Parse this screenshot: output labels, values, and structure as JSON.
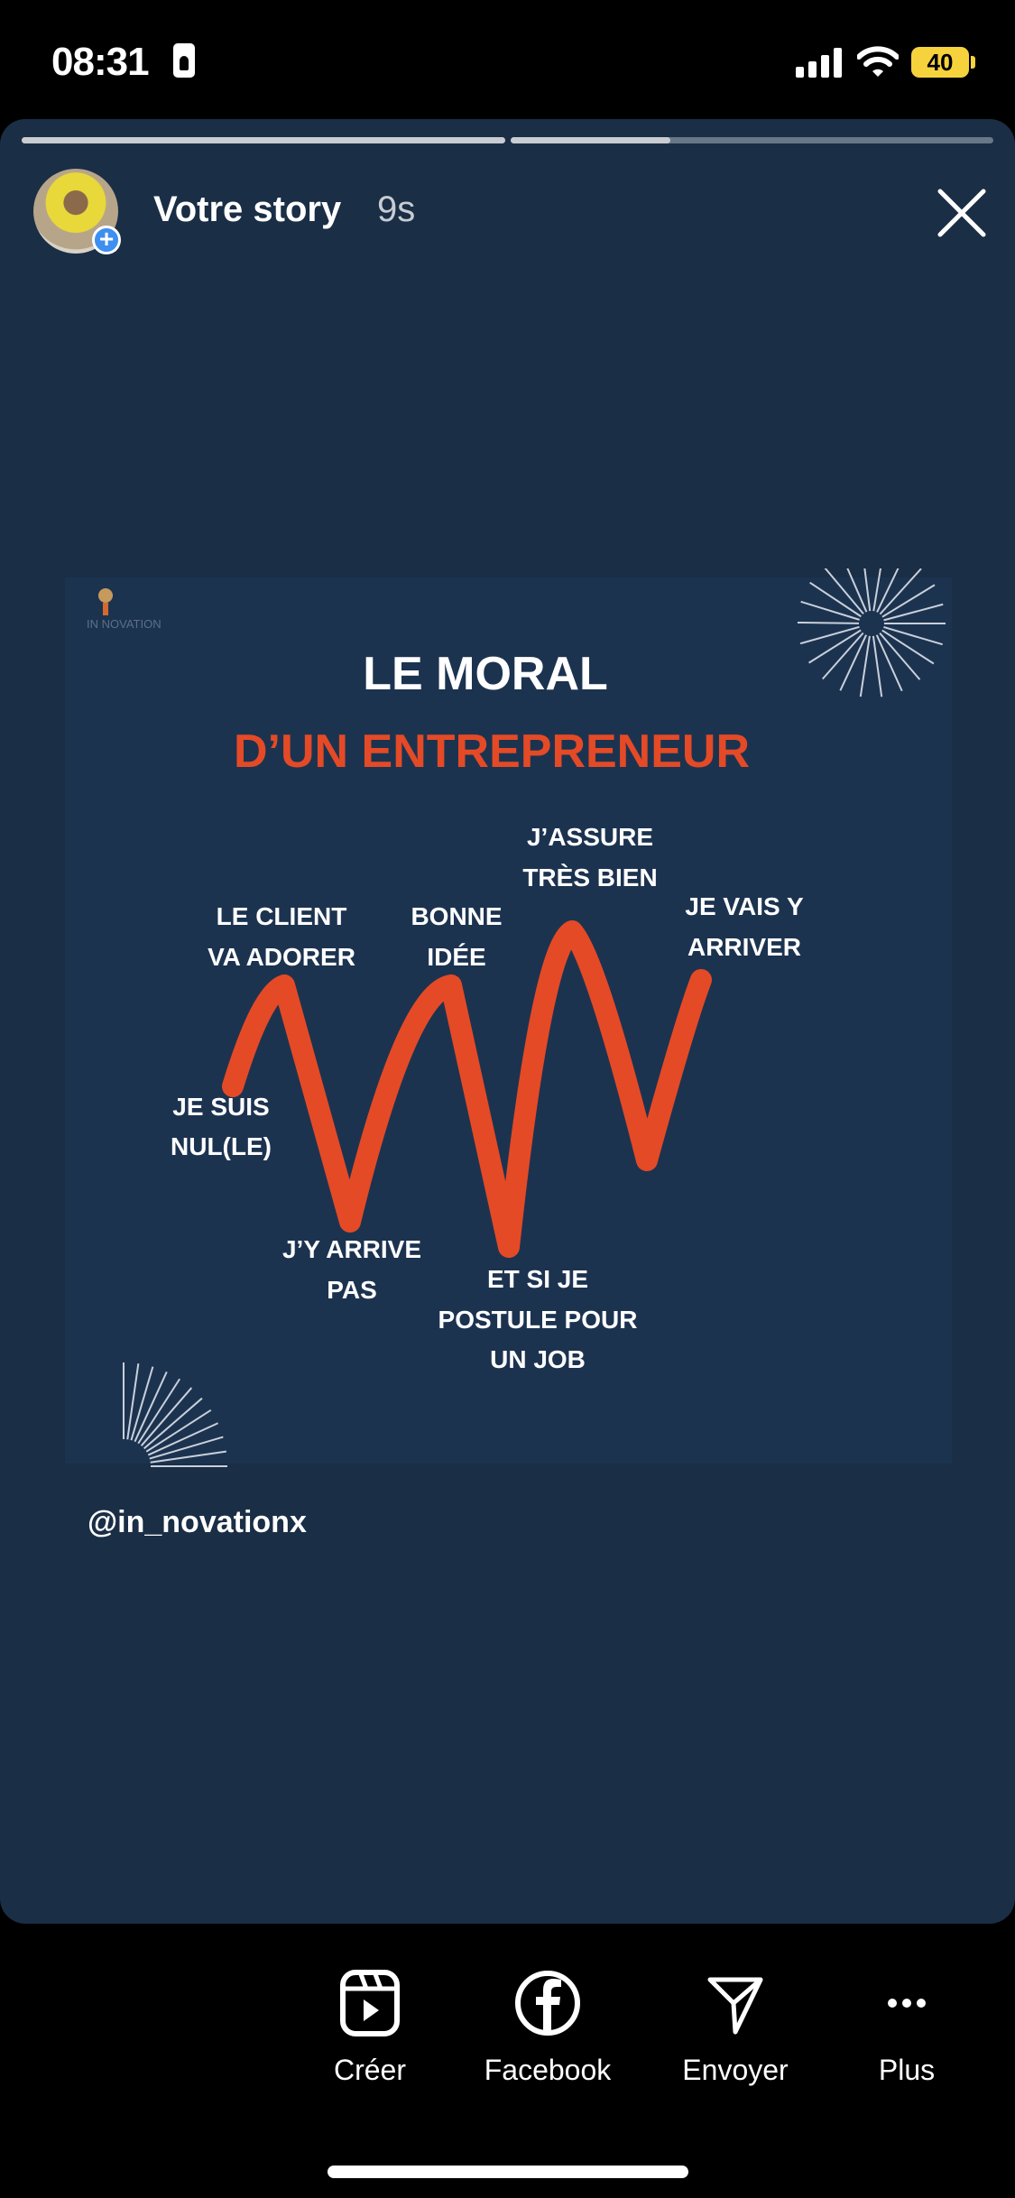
{
  "status_bar": {
    "time": "08:31",
    "battery": "40",
    "battery_color": "#f6d33c"
  },
  "story": {
    "progress": [
      1.0,
      0.33
    ],
    "title": "Votre story",
    "time": "9s",
    "background": "#1a2e46"
  },
  "post": {
    "logo_text": "IN NOVATION",
    "title_line1": "LE MORAL",
    "title_line2": "D’UN ENTREPRENEUR",
    "accent": "#e44a26",
    "labels": {
      "client": [
        "LE CLIENT",
        "VA ADORER"
      ],
      "bonne": [
        "BONNE",
        "IDÉE"
      ],
      "assure": [
        "J’ASSURE",
        "TRÈS BIEN"
      ],
      "vais": [
        "JE VAIS Y",
        "ARRIVER"
      ],
      "nul": [
        "JE SUIS",
        "NUL(LE)"
      ],
      "arrive": [
        "J’Y ARRIVE",
        "PAS"
      ],
      "job": [
        "ET SI JE",
        "POSTULE POUR",
        "UN JOB"
      ]
    }
  },
  "mention": "@in_novationx",
  "actions": [
    {
      "label": "Créer",
      "icon": "reels-icon"
    },
    {
      "label": "Facebook",
      "icon": "facebook-icon"
    },
    {
      "label": "Envoyer",
      "icon": "send-icon"
    },
    {
      "label": "Plus",
      "icon": "more-icon"
    }
  ]
}
